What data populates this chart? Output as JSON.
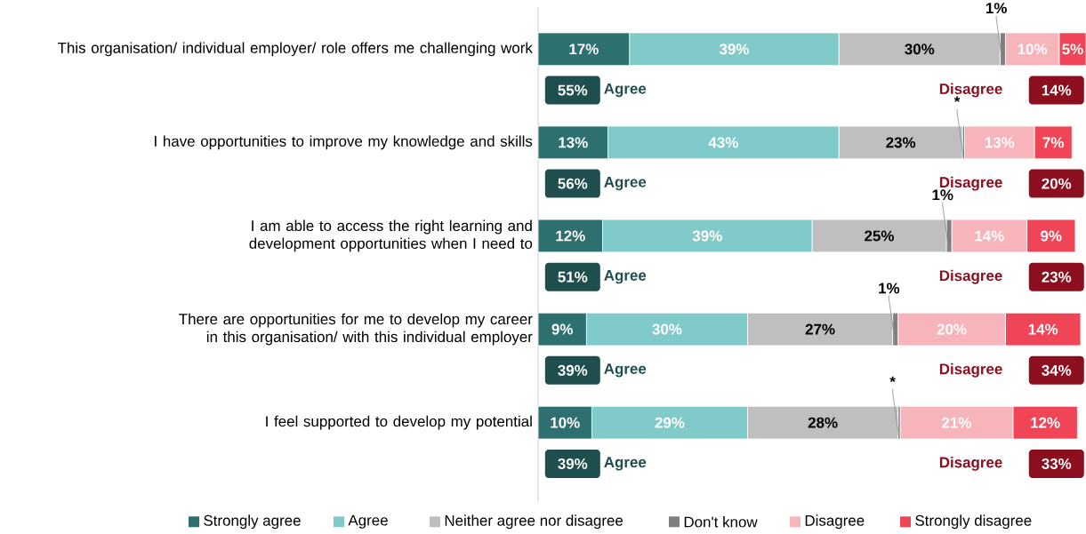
{
  "chart_data": {
    "type": "bar",
    "orientation": "horizontal",
    "stacked": true,
    "legend": "bottom",
    "categories": [
      "This organisation/ individual employer/ role offers me challenging work",
      "I have opportunities to improve my knowledge and skills",
      "I am able to access the right learning and development opportunities when I need to",
      "There are opportunities for me to develop my career in this organisation/ with this individual employer",
      "I feel supported to develop my potential"
    ],
    "series": [
      {
        "name": "Strongly agree",
        "color": "#2e7070",
        "values": [
          17,
          13,
          12,
          9,
          10
        ],
        "value_labels": [
          "17%",
          "13%",
          "12%",
          "9%",
          "10%"
        ]
      },
      {
        "name": "Agree",
        "color": "#80cbca",
        "values": [
          39,
          43,
          39,
          30,
          29
        ],
        "value_labels": [
          "39%",
          "43%",
          "39%",
          "30%",
          "29%"
        ]
      },
      {
        "name": "Neither agree nor disagree",
        "color": "#bfbfbf",
        "values": [
          30,
          23,
          25,
          27,
          28
        ],
        "value_labels": [
          "30%",
          "23%",
          "25%",
          "27%",
          "28%"
        ]
      },
      {
        "name": "Don't know",
        "color": "#7f7f7f",
        "values": [
          1,
          0.4,
          1,
          1,
          0.4
        ],
        "value_labels": [
          "1%",
          "*",
          "1%",
          "1%",
          "*"
        ]
      },
      {
        "name": "Disagree",
        "color": "#f7b4bb",
        "values": [
          10,
          13,
          14,
          20,
          21
        ],
        "value_labels": [
          "10%",
          "13%",
          "14%",
          "20%",
          "21%"
        ]
      },
      {
        "name": "Strongly disagree",
        "color": "#f04457",
        "values": [
          5,
          7,
          9,
          14,
          12
        ],
        "value_labels": [
          "5%",
          "7%",
          "9%",
          "14%",
          "12%"
        ]
      }
    ],
    "annotations": [
      "55%",
      "Agree",
      "Disagree",
      "14%",
      "56%",
      "Agree",
      "Disagree",
      "20%",
      "51%",
      "Agree",
      "Disagree",
      "23%",
      "39%",
      "Agree",
      "Disagree",
      "34%",
      "39%",
      "Agree",
      "Disagree",
      "33%"
    ]
  }
}
